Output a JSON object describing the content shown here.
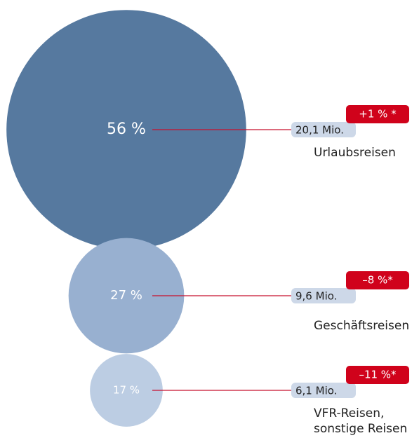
{
  "chart_data": {
    "type": "bubble",
    "categories": [
      [
        "Urlaubsreisen"
      ],
      [
        "Geschäftsreisen"
      ],
      [
        "VFR-Reisen,",
        "sonstige Reisen"
      ]
    ],
    "values": [
      56,
      27,
      17
    ],
    "value_labels": [
      "56 %",
      "27 %",
      "17 %"
    ],
    "colors": [
      "#56799f",
      "#98b0d0",
      "#bccde3"
    ],
    "counts": [
      20.1,
      9.6,
      6.1
    ],
    "count_labels": [
      "20,1 Mio.",
      "9,6 Mio.",
      "6,1 Mio."
    ],
    "changes": [
      1,
      -8,
      -11
    ],
    "change_labels": [
      "+1 % *",
      "–8 %*",
      "–11 %*"
    ],
    "line_color": "#c8102e",
    "change_color": "#d0021b",
    "count_box_color": "#cdd8e8"
  }
}
